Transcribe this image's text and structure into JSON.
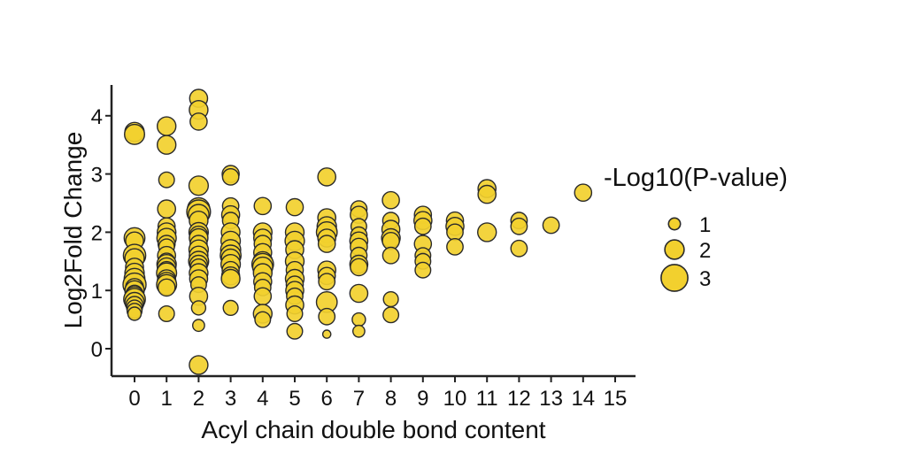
{
  "chart_data": {
    "type": "scatter",
    "title": "",
    "xlabel": "Acyl chain double bond content",
    "ylabel": "Log2Fold Change",
    "xlim": [
      -0.5,
      15.5
    ],
    "ylim": [
      -0.55,
      4.55
    ],
    "x_ticks": [
      "0",
      "1",
      "2",
      "3",
      "4",
      "5",
      "6",
      "7",
      "8",
      "9",
      "10",
      "11",
      "12",
      "13",
      "14",
      "15"
    ],
    "y_ticks": [
      "0",
      "1",
      "2",
      "3",
      "4"
    ],
    "grid": false,
    "legend": {
      "title": "-Log10(P-value)",
      "placement": "right",
      "entries": [
        {
          "label": "1",
          "size": 1
        },
        {
          "label": "2",
          "size": 2
        },
        {
          "label": "3",
          "size": 3
        }
      ]
    },
    "colors": {
      "fill": "#f2d02e",
      "stroke": "#2a2a2a"
    },
    "points": [
      [
        0,
        3.72,
        2.0
      ],
      [
        0,
        3.68,
        2.1
      ],
      [
        0,
        1.9,
        2.2
      ],
      [
        0,
        1.85,
        1.8
      ],
      [
        0,
        1.6,
        2.4
      ],
      [
        0,
        1.55,
        2.0
      ],
      [
        0,
        1.4,
        1.8
      ],
      [
        0,
        1.3,
        2.0
      ],
      [
        0,
        1.2,
        2.2
      ],
      [
        0,
        1.1,
        2.5
      ],
      [
        0,
        1.05,
        1.8
      ],
      [
        0,
        1.0,
        2.0
      ],
      [
        0,
        0.95,
        1.6
      ],
      [
        0,
        0.9,
        2.0
      ],
      [
        0,
        0.85,
        2.3
      ],
      [
        0,
        0.8,
        2.0
      ],
      [
        0,
        0.75,
        1.7
      ],
      [
        0,
        0.7,
        1.5
      ],
      [
        0,
        0.65,
        1.4
      ],
      [
        0,
        0.6,
        1.2
      ],
      [
        1,
        3.82,
        1.9
      ],
      [
        1,
        3.5,
        1.9
      ],
      [
        1,
        2.9,
        1.5
      ],
      [
        1,
        2.4,
        1.8
      ],
      [
        1,
        2.1,
        1.7
      ],
      [
        1,
        2.0,
        1.9
      ],
      [
        1,
        1.9,
        2.0
      ],
      [
        1,
        1.8,
        1.7
      ],
      [
        1,
        1.75,
        1.5
      ],
      [
        1,
        1.6,
        1.8
      ],
      [
        1,
        1.5,
        1.6
      ],
      [
        1,
        1.45,
        2.0
      ],
      [
        1,
        1.4,
        1.9
      ],
      [
        1,
        1.35,
        1.7
      ],
      [
        1,
        1.3,
        2.1
      ],
      [
        1,
        1.2,
        1.8
      ],
      [
        1,
        1.15,
        1.9
      ],
      [
        1,
        1.1,
        2.1
      ],
      [
        1,
        1.05,
        1.7
      ],
      [
        1,
        0.6,
        1.5
      ],
      [
        2,
        4.3,
        1.8
      ],
      [
        2,
        4.1,
        1.9
      ],
      [
        2,
        3.9,
        1.7
      ],
      [
        2,
        2.8,
        2.0
      ],
      [
        2,
        2.4,
        2.4
      ],
      [
        2,
        2.35,
        2.6
      ],
      [
        2,
        2.3,
        2.2
      ],
      [
        2,
        2.2,
        1.9
      ],
      [
        2,
        2.0,
        2.0
      ],
      [
        2,
        1.95,
        1.8
      ],
      [
        2,
        1.9,
        1.9
      ],
      [
        2,
        1.8,
        1.7
      ],
      [
        2,
        1.7,
        2.0
      ],
      [
        2,
        1.6,
        1.9
      ],
      [
        2,
        1.5,
        2.1
      ],
      [
        2,
        1.45,
        1.8
      ],
      [
        2,
        1.4,
        1.6
      ],
      [
        2,
        1.3,
        1.9
      ],
      [
        2,
        1.2,
        1.8
      ],
      [
        2,
        1.1,
        1.5
      ],
      [
        2,
        0.9,
        1.8
      ],
      [
        2,
        0.7,
        1.3
      ],
      [
        2,
        0.4,
        1.0
      ],
      [
        2,
        -0.28,
        1.9
      ],
      [
        3,
        3.0,
        1.7
      ],
      [
        3,
        2.95,
        1.6
      ],
      [
        3,
        2.45,
        1.6
      ],
      [
        3,
        2.3,
        1.8
      ],
      [
        3,
        2.2,
        1.6
      ],
      [
        3,
        2.0,
        1.9
      ],
      [
        3,
        1.85,
        2.0
      ],
      [
        3,
        1.7,
        2.1
      ],
      [
        3,
        1.6,
        2.2
      ],
      [
        3,
        1.55,
        1.9
      ],
      [
        3,
        1.45,
        2.0
      ],
      [
        3,
        1.35,
        1.7
      ],
      [
        3,
        1.25,
        1.8
      ],
      [
        3,
        1.2,
        1.9
      ],
      [
        3,
        0.7,
        1.4
      ],
      [
        4,
        2.45,
        1.7
      ],
      [
        4,
        2.0,
        1.9
      ],
      [
        4,
        1.9,
        1.8
      ],
      [
        4,
        1.8,
        1.7
      ],
      [
        4,
        1.65,
        1.8
      ],
      [
        4,
        1.5,
        2.0
      ],
      [
        4,
        1.45,
        2.3
      ],
      [
        4,
        1.4,
        2.1
      ],
      [
        4,
        1.3,
        1.9
      ],
      [
        4,
        1.15,
        1.8
      ],
      [
        4,
        1.05,
        1.6
      ],
      [
        4,
        0.9,
        1.7
      ],
      [
        4,
        0.6,
        1.9
      ],
      [
        4,
        0.5,
        1.5
      ],
      [
        5,
        2.43,
        1.7
      ],
      [
        5,
        2.0,
        1.9
      ],
      [
        5,
        1.85,
        2.0
      ],
      [
        5,
        1.7,
        1.8
      ],
      [
        5,
        1.5,
        1.9
      ],
      [
        5,
        1.35,
        1.7
      ],
      [
        5,
        1.2,
        1.9
      ],
      [
        5,
        1.1,
        1.7
      ],
      [
        5,
        1.0,
        1.8
      ],
      [
        5,
        0.9,
        1.6
      ],
      [
        5,
        0.75,
        1.8
      ],
      [
        5,
        0.6,
        1.5
      ],
      [
        5,
        0.3,
        1.5
      ],
      [
        6,
        2.95,
        1.8
      ],
      [
        6,
        2.25,
        1.8
      ],
      [
        6,
        2.1,
        2.0
      ],
      [
        6,
        2.0,
        2.2
      ],
      [
        6,
        1.9,
        1.8
      ],
      [
        6,
        1.8,
        1.7
      ],
      [
        6,
        1.35,
        1.8
      ],
      [
        6,
        1.25,
        1.7
      ],
      [
        6,
        1.15,
        1.6
      ],
      [
        6,
        0.8,
        2.2
      ],
      [
        6,
        0.55,
        1.6
      ],
      [
        6,
        0.25,
        0.5
      ],
      [
        7,
        2.4,
        1.6
      ],
      [
        7,
        2.3,
        1.7
      ],
      [
        7,
        2.1,
        1.5
      ],
      [
        7,
        1.95,
        1.6
      ],
      [
        7,
        1.85,
        1.8
      ],
      [
        7,
        1.75,
        1.7
      ],
      [
        7,
        1.6,
        1.6
      ],
      [
        7,
        1.45,
        1.8
      ],
      [
        7,
        1.4,
        1.7
      ],
      [
        7,
        0.95,
        1.8
      ],
      [
        7,
        0.5,
        1.2
      ],
      [
        7,
        0.3,
        1.0
      ],
      [
        8,
        2.55,
        1.7
      ],
      [
        8,
        2.2,
        1.6
      ],
      [
        8,
        2.05,
        1.8
      ],
      [
        8,
        1.9,
        1.9
      ],
      [
        8,
        1.85,
        1.7
      ],
      [
        8,
        1.6,
        1.6
      ],
      [
        8,
        0.85,
        1.4
      ],
      [
        8,
        0.58,
        1.5
      ],
      [
        9,
        2.3,
        1.7
      ],
      [
        9,
        2.2,
        1.8
      ],
      [
        9,
        2.1,
        1.6
      ],
      [
        9,
        1.8,
        1.7
      ],
      [
        9,
        1.6,
        1.5
      ],
      [
        9,
        1.5,
        1.5
      ],
      [
        9,
        1.35,
        1.5
      ],
      [
        10,
        2.2,
        1.7
      ],
      [
        10,
        2.1,
        1.8
      ],
      [
        10,
        2.0,
        1.6
      ],
      [
        10,
        1.75,
        1.6
      ],
      [
        11,
        2.75,
        1.8
      ],
      [
        11,
        2.65,
        1.8
      ],
      [
        11,
        2.0,
        1.9
      ],
      [
        12,
        2.2,
        1.6
      ],
      [
        12,
        2.1,
        1.6
      ],
      [
        12,
        1.72,
        1.6
      ],
      [
        13,
        2.12,
        1.6
      ],
      [
        14,
        2.68,
        1.7
      ]
    ]
  }
}
